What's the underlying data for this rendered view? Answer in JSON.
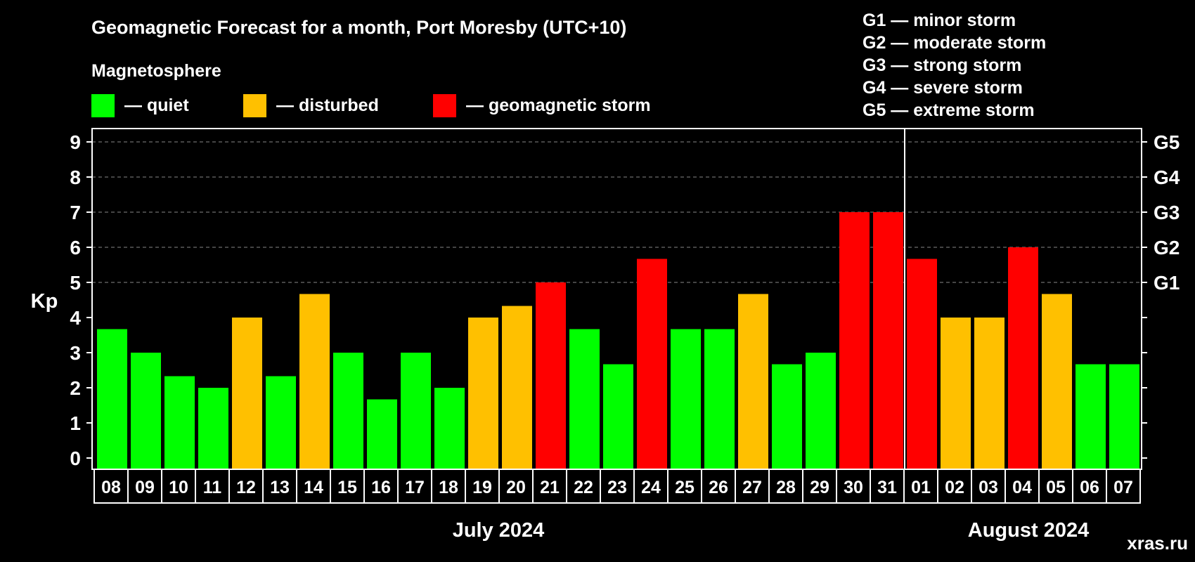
{
  "chart_data": {
    "type": "bar",
    "title": "Geomagnetic Forecast for a month, Port Moresby (UTC+10)",
    "legend_title": "Magnetosphere",
    "legend": [
      {
        "label": "— quiet",
        "color": "#00ff00",
        "status": "quiet"
      },
      {
        "label": "— disturbed",
        "color": "#ffc000",
        "status": "disturbed"
      },
      {
        "label": "— geomagnetic storm",
        "color": "#ff0000",
        "status": "storm"
      }
    ],
    "storm_scale": [
      "G1 — minor storm",
      "G2 — moderate storm",
      "G3 — strong storm",
      "G4 — severe storm",
      "G5 — extreme storm"
    ],
    "ylabel": "Kp",
    "ylim": [
      0,
      9
    ],
    "yticks": [
      "0",
      "1",
      "2",
      "3",
      "4",
      "5",
      "6",
      "7",
      "8",
      "9"
    ],
    "right_ticks": [
      {
        "value": 5,
        "label": "G1"
      },
      {
        "value": 6,
        "label": "G2"
      },
      {
        "value": 7,
        "label": "G3"
      },
      {
        "value": 8,
        "label": "G4"
      },
      {
        "value": 9,
        "label": "G5"
      }
    ],
    "grid": "dashed horizontal at integer Kp values from 5 to 9",
    "categories": [
      "08",
      "09",
      "10",
      "11",
      "12",
      "13",
      "14",
      "15",
      "16",
      "17",
      "18",
      "19",
      "20",
      "21",
      "22",
      "23",
      "24",
      "25",
      "26",
      "27",
      "28",
      "29",
      "30",
      "31",
      "01",
      "02",
      "03",
      "04",
      "05",
      "06",
      "07"
    ],
    "values": [
      3.67,
      3.0,
      2.33,
      2.0,
      4.0,
      2.33,
      4.67,
      3.0,
      1.67,
      3.0,
      2.0,
      4.0,
      4.33,
      5.0,
      3.67,
      2.67,
      5.67,
      3.67,
      3.67,
      4.67,
      2.67,
      3.0,
      7.0,
      7.0,
      5.67,
      4.0,
      4.0,
      6.0,
      4.67,
      2.67,
      2.67
    ],
    "status": [
      "quiet",
      "quiet",
      "quiet",
      "quiet",
      "disturbed",
      "quiet",
      "disturbed",
      "quiet",
      "quiet",
      "quiet",
      "quiet",
      "disturbed",
      "disturbed",
      "storm",
      "quiet",
      "quiet",
      "storm",
      "quiet",
      "quiet",
      "disturbed",
      "quiet",
      "quiet",
      "storm",
      "storm",
      "storm",
      "disturbed",
      "disturbed",
      "storm",
      "disturbed",
      "quiet",
      "quiet"
    ],
    "months": [
      {
        "label": "July 2024",
        "first_index": 0,
        "count": 24
      },
      {
        "label": "August 2024",
        "first_index": 24,
        "count": 7
      }
    ],
    "month_divider_after_index": 23
  },
  "watermark": "xras.ru",
  "colors": {
    "background": "#000000",
    "foreground": "#ffffff",
    "quiet": "#00ff00",
    "disturbed": "#ffc000",
    "storm": "#ff0000",
    "grid": "#888888"
  }
}
